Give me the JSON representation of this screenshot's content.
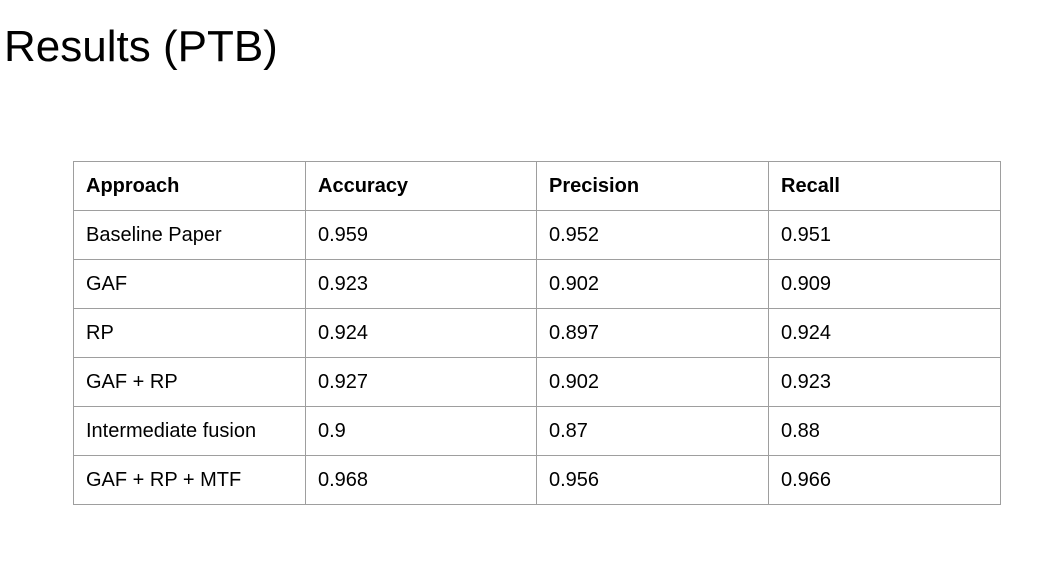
{
  "title": "Results (PTB)",
  "table": {
    "headers": [
      "Approach",
      "Accuracy",
      "Precision",
      "Recall"
    ],
    "rows": [
      [
        "Baseline Paper",
        "0.959",
        "0.952",
        "0.951"
      ],
      [
        "GAF",
        "0.923",
        "0.902",
        "0.909"
      ],
      [
        "RP",
        "0.924",
        "0.897",
        "0.924"
      ],
      [
        "GAF + RP",
        "0.927",
        "0.902",
        "0.923"
      ],
      [
        "Intermediate fusion",
        "0.9",
        "0.87",
        "0.88"
      ],
      [
        "GAF + RP + MTF",
        "0.968",
        "0.956",
        "0.966"
      ]
    ]
  }
}
